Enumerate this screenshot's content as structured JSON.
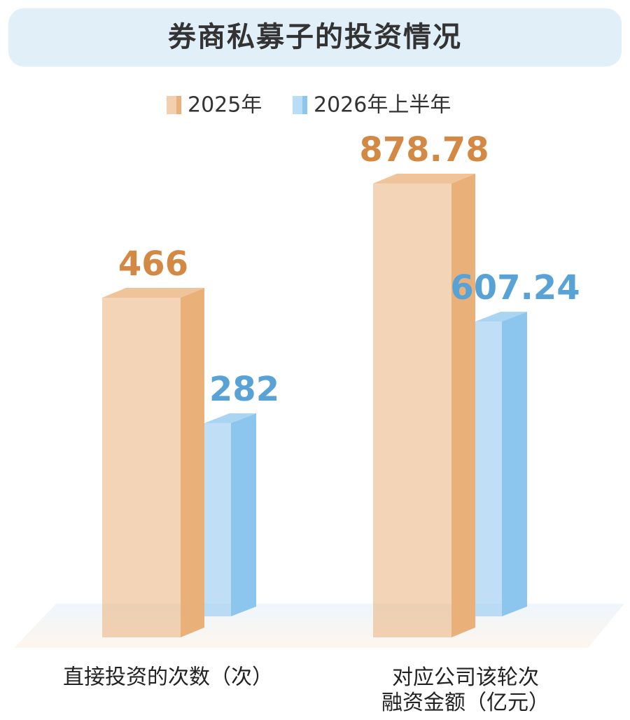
{
  "chart_data": {
    "type": "bar",
    "title": "券商私募子的投资情况",
    "categories": [
      "直接投资的次数（次）",
      "对应公司该轮次\n融资金额（亿元）"
    ],
    "series": [
      {
        "name": "2025年",
        "color": "#eab07a",
        "values": [
          466,
          878.78
        ]
      },
      {
        "name": "2026年上半年",
        "color": "#8cc5ee",
        "values": [
          282,
          607.24
        ]
      }
    ]
  }
}
